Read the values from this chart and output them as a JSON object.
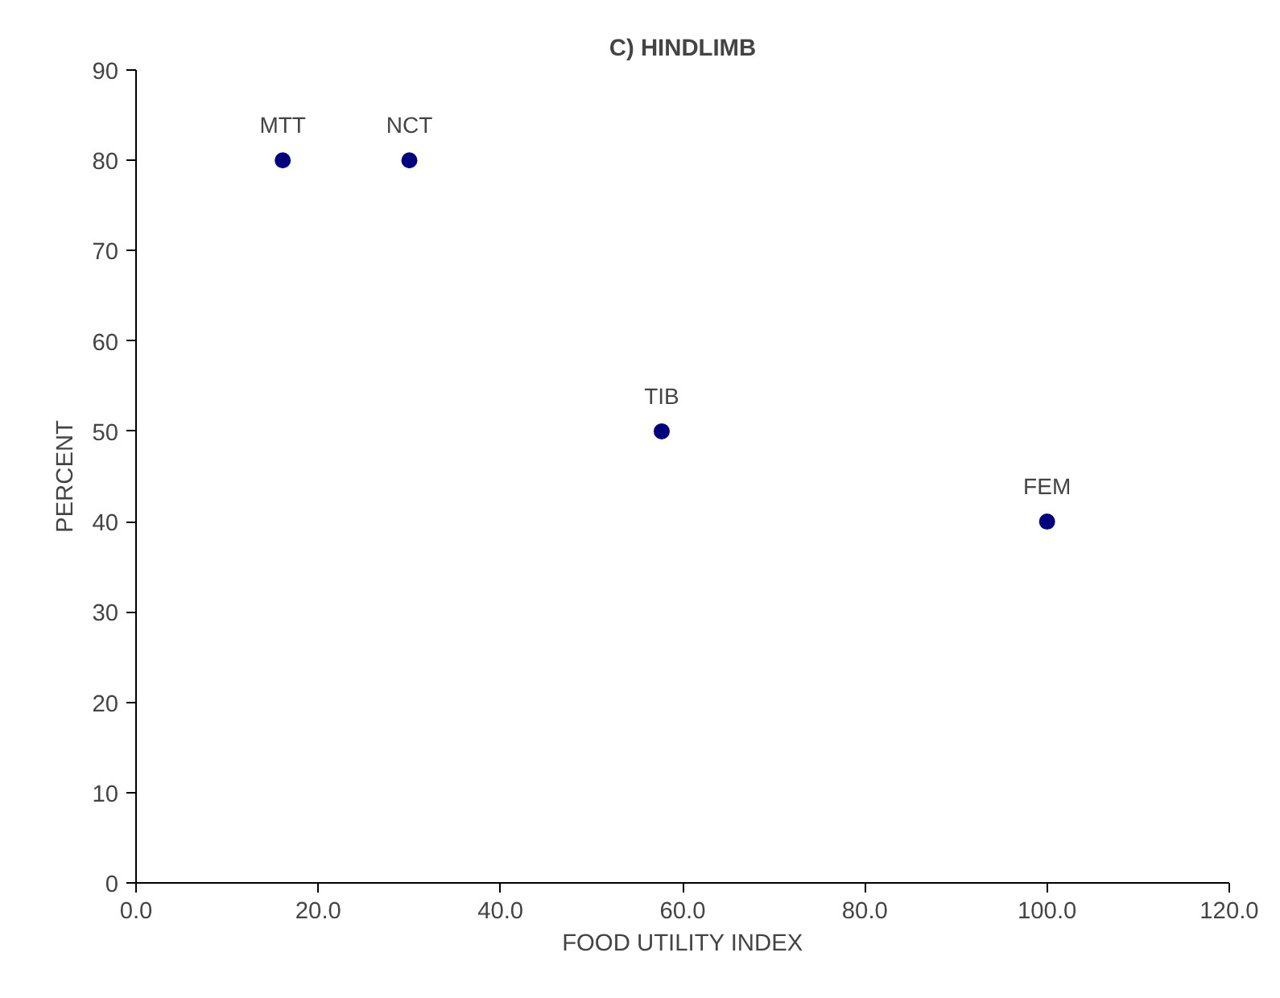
{
  "chart_data": {
    "type": "scatter",
    "title": "C) HINDLIMB",
    "xlabel": "FOOD UTILITY INDEX",
    "ylabel": "PERCENT",
    "series": [
      {
        "color": "#00007f",
        "x": [
          16.1,
          30.0,
          57.7,
          100.0
        ],
        "values": [
          80,
          80,
          50,
          40
        ]
      }
    ],
    "annotations": [
      {
        "text": "MTT",
        "x": 16.1,
        "y": 80
      },
      {
        "text": "NCT",
        "x": 30.0,
        "y": 80
      },
      {
        "text": "TIB",
        "x": 57.7,
        "y": 50
      },
      {
        "text": "FEM",
        "x": 100.0,
        "y": 40
      }
    ],
    "xlim": [
      0,
      120
    ],
    "xticks": [
      {
        "value": 0,
        "label": "0.0"
      },
      {
        "value": 20,
        "label": "20.0"
      },
      {
        "value": 40,
        "label": "40.0"
      },
      {
        "value": 60,
        "label": "60.0"
      },
      {
        "value": 80,
        "label": "80.0"
      },
      {
        "value": 100,
        "label": "100.0"
      },
      {
        "value": 120,
        "label": "120.0"
      }
    ],
    "ylim": [
      0,
      90
    ],
    "yticks": [
      0,
      10,
      20,
      30,
      40,
      50,
      60,
      70,
      80,
      90
    ],
    "marker": "circle",
    "grid": false
  }
}
